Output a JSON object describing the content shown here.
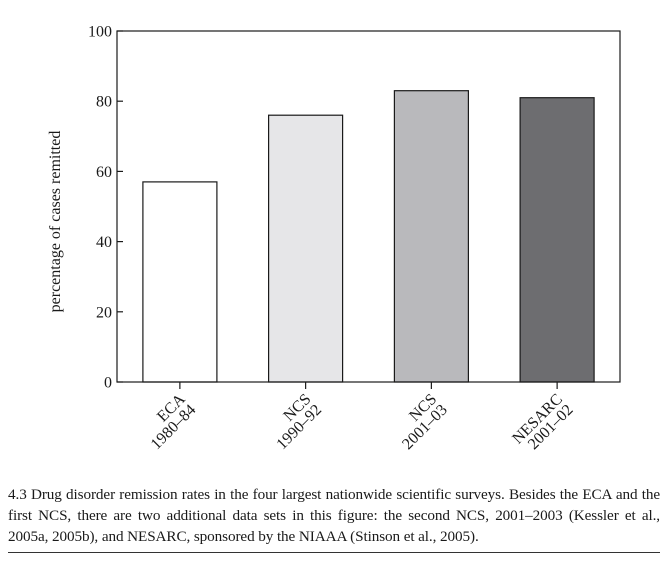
{
  "chart_data": {
    "type": "bar",
    "categories": [
      {
        "line1": "ECA",
        "line2": "1980–84"
      },
      {
        "line1": "NCS",
        "line2": "1990–92"
      },
      {
        "line1": "NCS",
        "line2": "2001–03"
      },
      {
        "line1": "NESARC",
        "line2": "2001–02"
      }
    ],
    "values": [
      57,
      76,
      83,
      81
    ],
    "colors": [
      "#ffffff",
      "#e6e6e8",
      "#b9b9bc",
      "#6d6d70"
    ],
    "ylabel": "percentage of cases remitted",
    "ylim": [
      0,
      100
    ],
    "yticks": [
      0,
      20,
      40,
      60,
      80,
      100
    ],
    "grid": false
  },
  "caption": "4.3 Drug disorder remission rates in the four largest nationwide scientific surveys. Besides the ECA and the first NCS, there are two additional data sets in this figure: the second NCS, 2001–2003 (Kessler et al., 2005a, 2005b), and NESARC, sponsored by the NIAAA (Stinson et al., 2005)."
}
